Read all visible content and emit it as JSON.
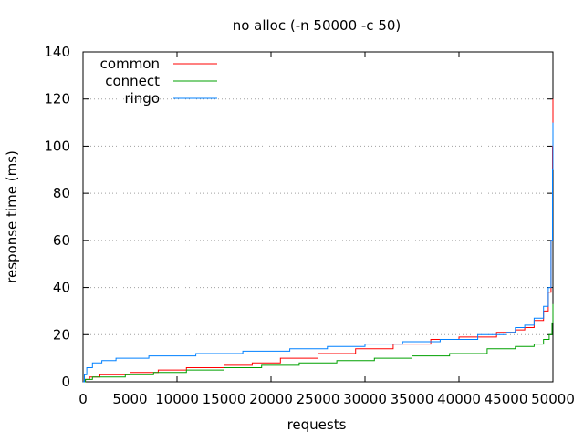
{
  "chart_data": {
    "type": "line",
    "title": "no alloc (-n 50000 -c 50)",
    "xlabel": "requests",
    "ylabel": "response time (ms)",
    "xlim": [
      0,
      50000
    ],
    "ylim": [
      0,
      140
    ],
    "x_ticks": [
      0,
      5000,
      10000,
      15000,
      20000,
      25000,
      30000,
      35000,
      40000,
      45000,
      50000
    ],
    "y_ticks": [
      0,
      20,
      40,
      60,
      80,
      100,
      120,
      140
    ],
    "grid": "horizontal dotted",
    "legend_position": "top-left",
    "series": [
      {
        "name": "common",
        "color": "#ff0000",
        "points": [
          [
            0,
            0
          ],
          [
            250,
            1
          ],
          [
            700,
            2
          ],
          [
            1800,
            3
          ],
          [
            5000,
            4
          ],
          [
            8000,
            5
          ],
          [
            11000,
            6
          ],
          [
            15000,
            7
          ],
          [
            18000,
            8
          ],
          [
            21000,
            10
          ],
          [
            25000,
            12
          ],
          [
            29000,
            14
          ],
          [
            33000,
            16
          ],
          [
            37000,
            18
          ],
          [
            40000,
            19
          ],
          [
            44000,
            21
          ],
          [
            46000,
            22
          ],
          [
            47000,
            23
          ],
          [
            48000,
            26
          ],
          [
            49000,
            30
          ],
          [
            49500,
            38
          ],
          [
            49800,
            60
          ],
          [
            49950,
            100
          ],
          [
            50000,
            120
          ]
        ]
      },
      {
        "name": "connect",
        "color": "#00a000",
        "points": [
          [
            0,
            0
          ],
          [
            250,
            1
          ],
          [
            1000,
            2
          ],
          [
            4500,
            3
          ],
          [
            7500,
            4
          ],
          [
            11000,
            5
          ],
          [
            15000,
            6
          ],
          [
            19000,
            7
          ],
          [
            23000,
            8
          ],
          [
            27000,
            9
          ],
          [
            31000,
            10
          ],
          [
            35000,
            11
          ],
          [
            39000,
            12
          ],
          [
            43000,
            14
          ],
          [
            46000,
            15
          ],
          [
            48000,
            16
          ],
          [
            49000,
            18
          ],
          [
            49600,
            20
          ],
          [
            49900,
            25
          ],
          [
            50000,
            33
          ]
        ]
      },
      {
        "name": "ringo",
        "color": "#0080ff",
        "points": [
          [
            0,
            0
          ],
          [
            150,
            3
          ],
          [
            400,
            6
          ],
          [
            1000,
            8
          ],
          [
            2000,
            9
          ],
          [
            3500,
            10
          ],
          [
            7000,
            11
          ],
          [
            12000,
            12
          ],
          [
            17000,
            13
          ],
          [
            22000,
            14
          ],
          [
            26000,
            15
          ],
          [
            30000,
            16
          ],
          [
            34000,
            17
          ],
          [
            38000,
            18
          ],
          [
            42000,
            20
          ],
          [
            45000,
            21
          ],
          [
            46000,
            23
          ],
          [
            47000,
            24
          ],
          [
            48000,
            27
          ],
          [
            49000,
            32
          ],
          [
            49500,
            40
          ],
          [
            49800,
            60
          ],
          [
            49950,
            90
          ],
          [
            50000,
            110
          ]
        ]
      }
    ]
  }
}
